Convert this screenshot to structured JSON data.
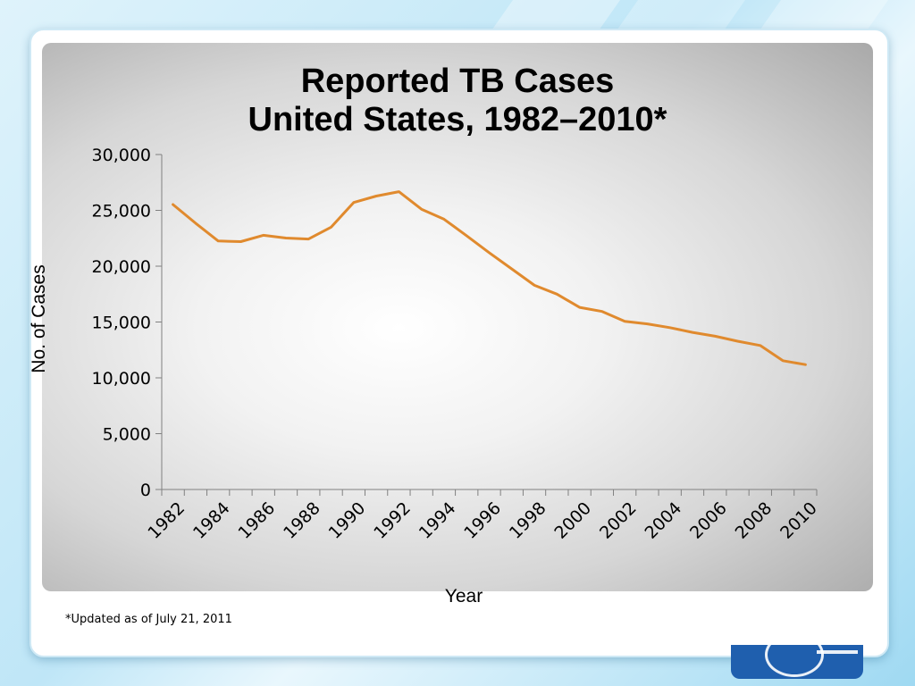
{
  "chart_data": {
    "type": "line",
    "title_lines": [
      "Reported TB Cases",
      "United States, 1982–2010*"
    ],
    "xlabel": "Year",
    "ylabel": "No. of Cases",
    "ylim": [
      0,
      30000
    ],
    "yticks": [
      "0",
      "5,000",
      "10,000",
      "15,000",
      "20,000",
      "25,000",
      "30,000"
    ],
    "xtick_labels": [
      "1982",
      "1984",
      "1986",
      "1988",
      "1990",
      "1992",
      "1994",
      "1996",
      "1998",
      "2000",
      "2002",
      "2004",
      "2006",
      "2008",
      "2010"
    ],
    "x": [
      1982,
      1983,
      1984,
      1985,
      1986,
      1987,
      1988,
      1989,
      1990,
      1991,
      1992,
      1993,
      1994,
      1995,
      1996,
      1997,
      1998,
      1999,
      2000,
      2001,
      2002,
      2003,
      2004,
      2005,
      2006,
      2007,
      2008,
      2009,
      2010
    ],
    "series": [
      {
        "values": [
          25520,
          23846,
          22255,
          22201,
          22768,
          22517,
          22436,
          23495,
          25701,
          26283,
          26673,
          25107,
          24206,
          22727,
          21210,
          19751,
          18287,
          17500,
          16309,
          15945,
          15055,
          14835,
          14499,
          14068,
          13732,
          13282,
          12895,
          11536,
          11182
        ],
        "color": "#e08a2e"
      }
    ],
    "grid": false,
    "legend": "none"
  },
  "footnote": "*Updated as of July 21, 2011"
}
